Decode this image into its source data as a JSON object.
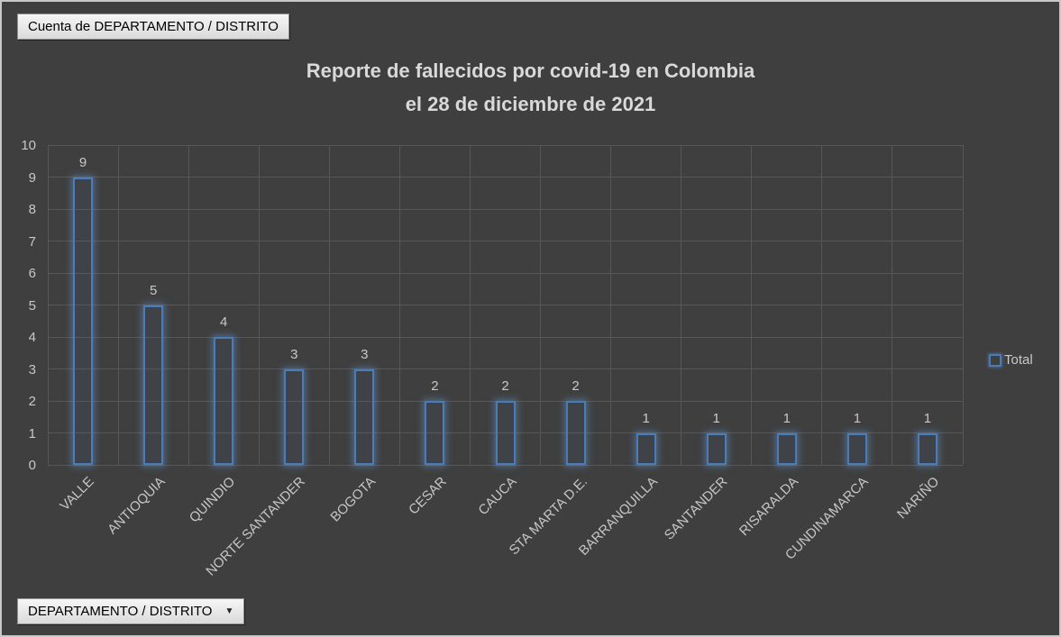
{
  "pivot_controls": {
    "values_button_label": "Cuenta de DEPARTAMENTO / DISTRITO",
    "axis_field_button_label": "DEPARTAMENTO / DISTRITO",
    "dropdown_icon": "▼"
  },
  "chart_data": {
    "type": "bar",
    "title": "Reporte de fallecidos por covid-19 en Colombia",
    "subtitle": "el 28 de diciembre de 2021",
    "categories": [
      "VALLE",
      "ANTIOQUIA",
      "QUINDIO",
      "NORTE SANTANDER",
      "BOGOTA",
      "CESAR",
      "CAUCA",
      "STA MARTA D.E.",
      "BARRANQUILLA",
      "SANTANDER",
      "RISARALDA",
      "CUNDINAMARCA",
      "NARIÑO"
    ],
    "series": [
      {
        "name": "Total",
        "values": [
          9,
          5,
          4,
          3,
          3,
          2,
          2,
          2,
          1,
          1,
          1,
          1,
          1
        ]
      }
    ],
    "data_labels": true,
    "xlabel": "",
    "ylabel": "",
    "ylim": [
      0,
      10
    ],
    "ytick_step": 1,
    "grid": true,
    "legend_position": "right",
    "colors": {
      "background": "#3f3f3f",
      "bar_outline": "#4a7cba",
      "gridline": "#575757",
      "text": "#c8c8c8",
      "title_text": "#d9d9d9"
    }
  }
}
